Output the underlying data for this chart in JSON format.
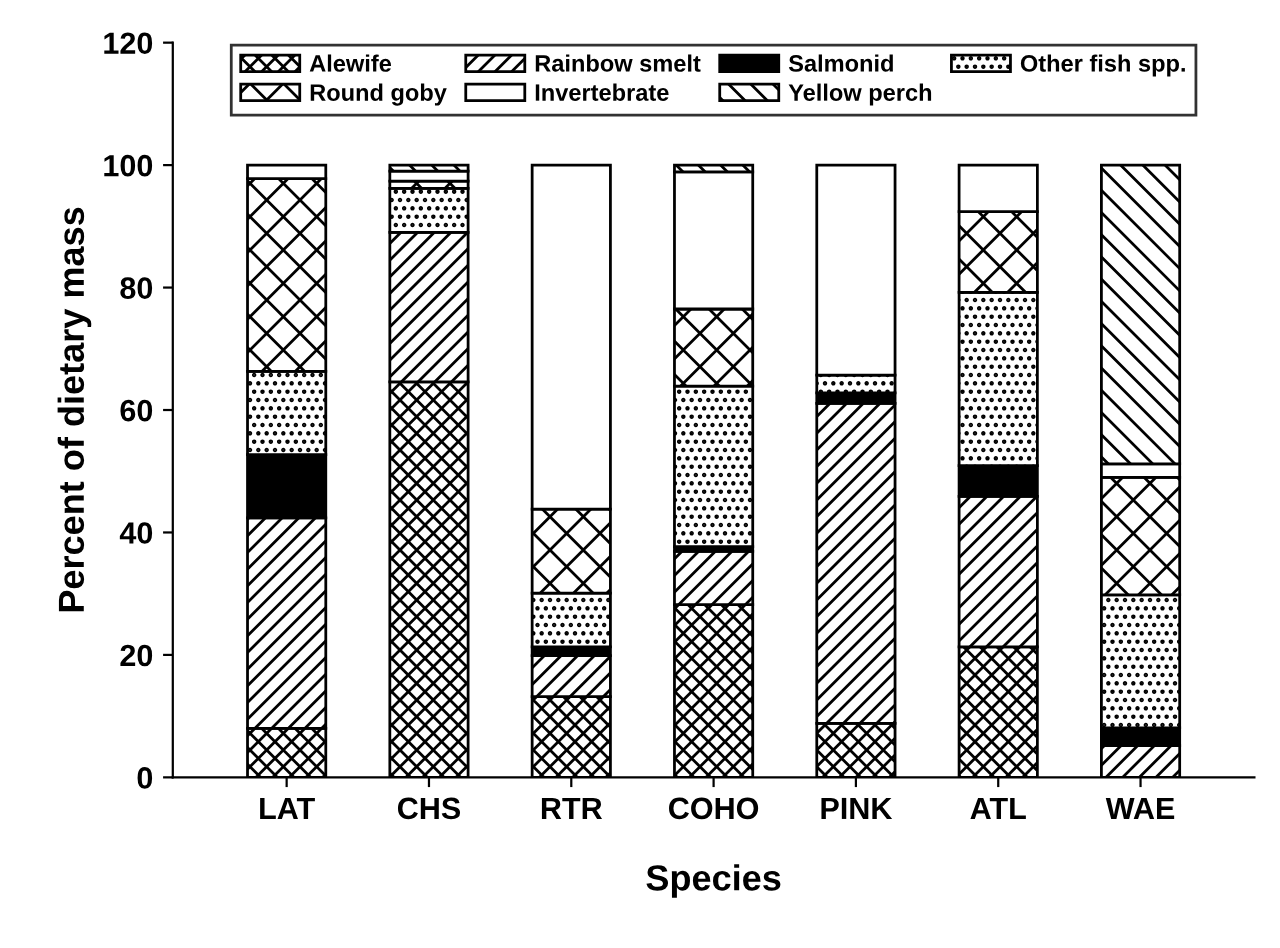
{
  "chart_data": {
    "type": "bar",
    "stacked": true,
    "xlabel": "Species",
    "ylabel": "Percent of dietary mass",
    "categories": [
      "LAT",
      "CHS",
      "RTR",
      "COHO",
      "PINK",
      "ATL",
      "WAE"
    ],
    "series": [
      {
        "name": "Alewife",
        "color": "#000000",
        "values": [
          8,
          64.6,
          13.2,
          28.2,
          8.8,
          21.3,
          null
        ]
      },
      {
        "name": "Rainbow smelt",
        "color": "#000000",
        "values": [
          34.4,
          24.4,
          6.7,
          8.7,
          52.3,
          24.6,
          5.2
        ]
      },
      {
        "name": "Salmonid",
        "color": "#000000",
        "values": [
          10.3,
          null,
          1.4,
          0.8,
          1.7,
          5.0,
          2.9
        ]
      },
      {
        "name": "Other fish spp.",
        "color": "#000000",
        "values": [
          13.6,
          7.2,
          8.8,
          26.2,
          2.9,
          28.3,
          21.7
        ]
      },
      {
        "name": "Round goby",
        "color": "#000000",
        "values": [
          31.5,
          1.2,
          13.7,
          12.6,
          null,
          13.2,
          19.2
        ]
      },
      {
        "name": "Invertebrate",
        "color": "#ffffff",
        "values": [
          2.2,
          1.6,
          56.2,
          22.4,
          34.3,
          7.6,
          2.2
        ]
      },
      {
        "name": "Yellow perch",
        "color": "#000000",
        "values": [
          null,
          1.0,
          null,
          1.1,
          null,
          null,
          48.8
        ]
      }
    ],
    "ylim": [
      0,
      120
    ],
    "yticks": [
      0,
      20,
      40,
      60,
      80,
      100,
      120
    ],
    "legend": "top",
    "grid": false
  }
}
